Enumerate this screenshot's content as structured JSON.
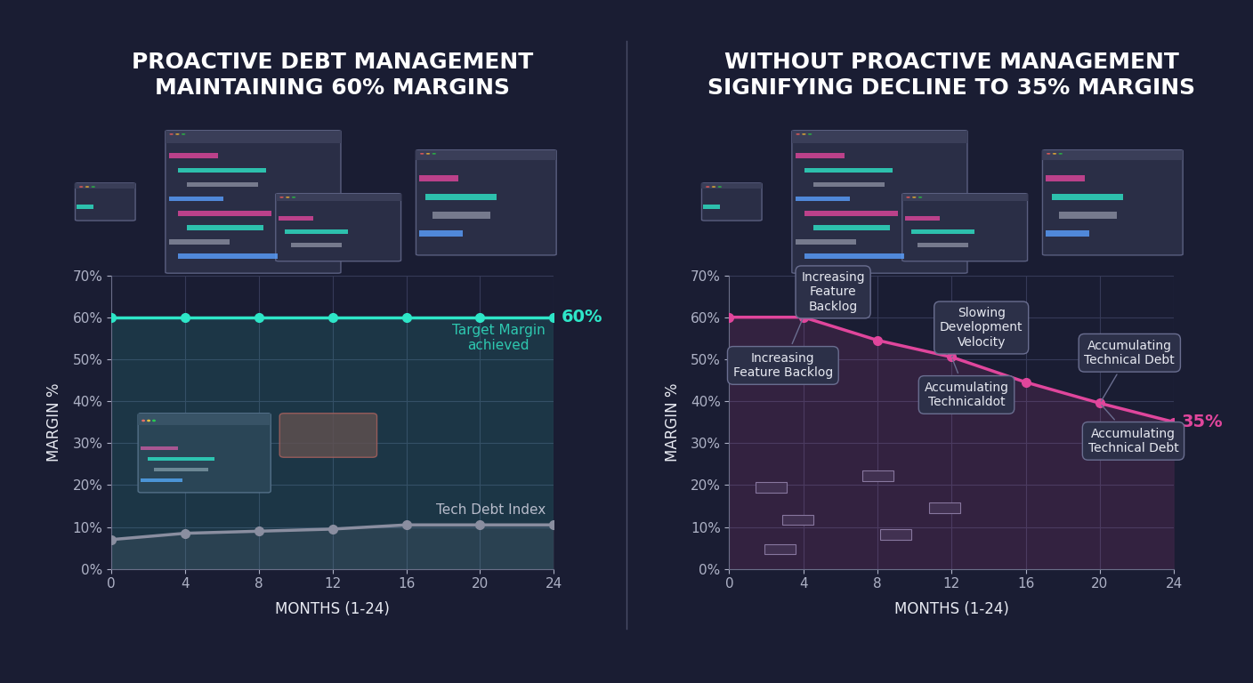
{
  "chart_data": [
    {
      "type": "line",
      "title": "PROACTIVE DEBT MANAGEMENT\nMAINTAINING 60% MARGINS",
      "xlabel": "MONTHS (1-24)",
      "ylabel": "MARGIN %",
      "x": [
        0,
        4,
        8,
        12,
        16,
        20,
        24
      ],
      "xlim": [
        0,
        24
      ],
      "xticks": [
        0,
        4,
        8,
        12,
        16,
        20,
        24
      ],
      "ylim": [
        0,
        70
      ],
      "yticks": [
        {
          "value": 0,
          "label": "0%"
        },
        {
          "value": 10,
          "label": "10%"
        },
        {
          "value": 20,
          "label": "20%"
        },
        {
          "value": 30,
          "label": "30%"
        },
        {
          "value": 40,
          "label": "40%"
        },
        {
          "value": 50,
          "label": "50%"
        },
        {
          "value": 60,
          "label": "60%"
        },
        {
          "value": 70,
          "label": "70%"
        }
      ],
      "grid": true,
      "series": [
        {
          "color": "#2ee6c8",
          "marker": "o",
          "values": [
            60,
            60,
            60,
            60,
            60,
            60,
            60
          ],
          "end_label": "60%"
        },
        {
          "name": "Tech Debt Index",
          "color": "#8a8ea0",
          "marker": "o",
          "values": [
            7,
            8.5,
            9,
            9.5,
            10.5,
            10.5,
            10.5
          ]
        }
      ],
      "annotations": [
        {
          "text": "Target Margin\nachieved"
        }
      ]
    },
    {
      "type": "line",
      "title": "WITHOUT PROACTIVE MANAGEMENT\nSIGNIFYING DECLINE TO 35% MARGINS",
      "xlabel": "MONTHS (1-24)",
      "ylabel": "MARGIN %",
      "x": [
        0,
        4,
        8,
        12,
        16,
        20,
        24
      ],
      "xlim": [
        0,
        24
      ],
      "xticks": [
        0,
        4,
        8,
        12,
        16,
        20,
        24
      ],
      "ylim": [
        0,
        70
      ],
      "yticks": [
        {
          "value": 0,
          "label": "0%"
        },
        {
          "value": 10,
          "label": "10%"
        },
        {
          "value": 20,
          "label": "20%"
        },
        {
          "value": 30,
          "label": "30%"
        },
        {
          "value": 40,
          "label": "40%"
        },
        {
          "value": 50,
          "label": "50%"
        },
        {
          "value": 60,
          "label": "60%"
        },
        {
          "value": 70,
          "label": "70%"
        }
      ],
      "grid": true,
      "series": [
        {
          "color": "#e0469c",
          "marker": "o",
          "values": [
            60,
            60,
            54.5,
            50.5,
            44.5,
            39.5,
            35
          ],
          "end_label": "35%"
        }
      ],
      "annotations": [
        {
          "text": "Increasing\nFeature\nBacklog",
          "x": 4
        },
        {
          "text": "Increasing\nFeature Backlog",
          "x": 4
        },
        {
          "text": "Slowing\nDevelopment\nVelocity",
          "x": 12
        },
        {
          "text": "Accumulating\nTechnicaldot",
          "x": 12
        },
        {
          "text": "Accumulating\nTechnical Debt",
          "x": 20
        },
        {
          "text": "Accumulating\nTechnical Debt",
          "x": 20
        }
      ]
    }
  ]
}
